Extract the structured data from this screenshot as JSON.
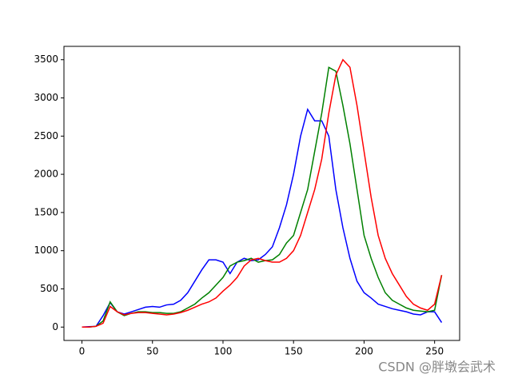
{
  "chart_data": {
    "type": "line",
    "x": [
      0,
      5,
      10,
      15,
      20,
      25,
      30,
      35,
      40,
      45,
      50,
      55,
      60,
      65,
      70,
      75,
      80,
      85,
      90,
      95,
      100,
      105,
      110,
      115,
      120,
      125,
      130,
      135,
      140,
      145,
      150,
      155,
      160,
      165,
      170,
      175,
      180,
      185,
      190,
      195,
      200,
      205,
      210,
      215,
      220,
      225,
      230,
      235,
      240,
      245,
      250,
      255
    ],
    "series": [
      {
        "color": "#0000ff",
        "values": [
          0,
          5,
          10,
          150,
          320,
          200,
          170,
          200,
          230,
          260,
          270,
          260,
          290,
          300,
          350,
          450,
          600,
          750,
          880,
          880,
          850,
          700,
          850,
          900,
          870,
          880,
          950,
          1050,
          1300,
          1600,
          2000,
          2500,
          2850,
          2700,
          2700,
          2500,
          1800,
          1300,
          900,
          600,
          450,
          380,
          300,
          270,
          240,
          220,
          200,
          170,
          160,
          200,
          200,
          60
        ]
      },
      {
        "color": "#008000",
        "values": [
          0,
          0,
          10,
          80,
          330,
          200,
          150,
          180,
          200,
          200,
          190,
          190,
          180,
          180,
          200,
          250,
          300,
          380,
          450,
          550,
          650,
          800,
          850,
          870,
          900,
          850,
          870,
          880,
          950,
          1100,
          1200,
          1500,
          1800,
          2300,
          2800,
          3400,
          3350,
          2900,
          2400,
          1800,
          1200,
          900,
          650,
          450,
          350,
          300,
          250,
          220,
          210,
          200,
          220,
          680
        ]
      },
      {
        "color": "#ff0000",
        "values": [
          0,
          0,
          10,
          50,
          270,
          200,
          160,
          180,
          190,
          190,
          180,
          170,
          160,
          170,
          190,
          220,
          260,
          300,
          330,
          380,
          470,
          550,
          650,
          800,
          880,
          900,
          870,
          850,
          850,
          900,
          1000,
          1200,
          1500,
          1800,
          2200,
          2800,
          3300,
          3500,
          3400,
          2900,
          2300,
          1700,
          1200,
          900,
          700,
          550,
          400,
          300,
          250,
          220,
          300,
          680
        ]
      }
    ],
    "xlim": [
      -12.75,
      267.75
    ],
    "xticks": [
      0,
      50,
      100,
      150,
      200,
      250
    ],
    "ylim": [
      -175,
      3675
    ],
    "yticks": [
      0,
      500,
      1000,
      1500,
      2000,
      2500,
      3000,
      3500
    ],
    "annotation": "CSDN @胖墩会武术"
  }
}
